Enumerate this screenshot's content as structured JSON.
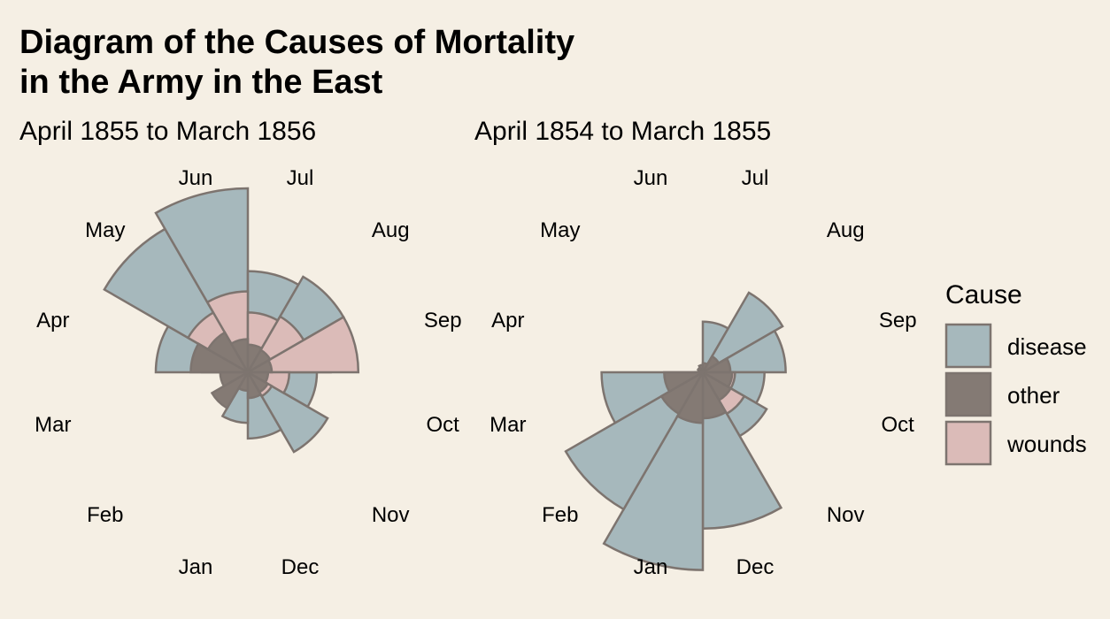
{
  "title": {
    "line1": "Diagram of the Causes of Mortality",
    "line2": "in the Army in the East"
  },
  "colors": {
    "background": "#f5efe4",
    "disease": "#a6b8bc",
    "other": "#847a74",
    "wounds": "#dbbbb8",
    "stroke": "#7d746f"
  },
  "chart_data": [
    {
      "type": "rose",
      "subtitle": "April 1855 to March 1856",
      "months": [
        "Apr",
        "May",
        "Jun",
        "Jul",
        "Aug",
        "Sep",
        "Oct",
        "Nov",
        "Dec",
        "Jan",
        "Feb",
        "Mar"
      ],
      "series": [
        {
          "name": "disease",
          "values": [
            1.0,
            1.8,
            2.0,
            1.1,
            1.2,
            0.9,
            0.75,
            1.0,
            0.72,
            0.55,
            0.3,
            0.25
          ]
        },
        {
          "name": "wounds",
          "values": [
            0.5,
            0.75,
            0.88,
            0.65,
            0.7,
            1.2,
            0.45,
            0.3,
            0.12,
            0.08,
            0.06,
            0.05
          ]
        },
        {
          "name": "other",
          "values": [
            0.62,
            0.5,
            0.36,
            0.3,
            0.28,
            0.26,
            0.22,
            0.25,
            0.28,
            0.2,
            0.45,
            0.3
          ]
        }
      ]
    },
    {
      "type": "rose",
      "subtitle": "April 1854 to March 1855",
      "months": [
        "Apr",
        "May",
        "Jun",
        "Jul",
        "Aug",
        "Sep",
        "Oct",
        "Nov",
        "Dec",
        "Jan",
        "Feb",
        "Mar"
      ],
      "series": [
        {
          "name": "disease",
          "values": [
            0.02,
            0.03,
            0.05,
            0.55,
            1.0,
            0.9,
            0.67,
            0.8,
            1.7,
            2.15,
            1.72,
            1.1
          ]
        },
        {
          "name": "wounds",
          "values": [
            0.0,
            0.0,
            0.0,
            0.0,
            0.0,
            0.1,
            0.35,
            0.52,
            0.3,
            0.2,
            0.12,
            0.08
          ]
        },
        {
          "name": "other",
          "values": [
            0.05,
            0.06,
            0.08,
            0.1,
            0.2,
            0.3,
            0.32,
            0.35,
            0.5,
            0.55,
            0.52,
            0.42
          ]
        }
      ]
    }
  ],
  "legend": {
    "title": "Cause",
    "items": [
      {
        "label": "disease",
        "color": "#a6b8bc"
      },
      {
        "label": "other",
        "color": "#847a74"
      },
      {
        "label": "wounds",
        "color": "#dbbbb8"
      }
    ]
  }
}
